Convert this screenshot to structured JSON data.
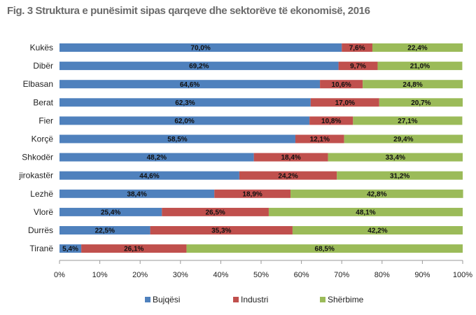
{
  "chart_data": {
    "type": "bar",
    "orientation": "horizontal",
    "stacked": true,
    "title": "Fig. 3 Struktura e punësimit sipas qarqeve dhe sektorëve të ekonomisë, 2016",
    "categories": [
      "Kukës",
      "Dibër",
      "Elbasan",
      "Berat",
      "Fier",
      "Korçë",
      "Shkodër",
      "jirokastër",
      "Lezhë",
      "Vlorë",
      "Durrës",
      "Tiranë"
    ],
    "series": [
      {
        "name": "Bujqësi",
        "color": "#4f81bd",
        "values": [
          70.0,
          69.2,
          64.6,
          62.3,
          62.0,
          58.5,
          48.2,
          44.6,
          38.4,
          25.4,
          22.5,
          5.4
        ],
        "labels": [
          "70,0%",
          "69,2%",
          "64,6%",
          "62,3%",
          "62,0%",
          "58,5%",
          "48,2%",
          "44,6%",
          "38,4%",
          "25,4%",
          "22,5%",
          "5,4%"
        ]
      },
      {
        "name": "Industri",
        "color": "#c0504d",
        "values": [
          7.6,
          9.7,
          10.6,
          17.0,
          10.8,
          12.1,
          18.4,
          24.2,
          18.9,
          26.5,
          35.3,
          26.1
        ],
        "labels": [
          "7,6%",
          "9,7%",
          "10,6%",
          "17,0%",
          "10,8%",
          "12,1%",
          "18,4%",
          "24,2%",
          "18,9%",
          "26,5%",
          "35,3%",
          "26,1%"
        ]
      },
      {
        "name": "Shërbime",
        "color": "#9bbb59",
        "values": [
          22.4,
          21.0,
          24.8,
          20.7,
          27.1,
          29.4,
          33.4,
          31.2,
          42.8,
          48.1,
          42.2,
          68.5
        ],
        "labels": [
          "22,4%",
          "21,0%",
          "24,8%",
          "20,7%",
          "27,1%",
          "29,4%",
          "33,4%",
          "31,2%",
          "42,8%",
          "48,1%",
          "42,2%",
          "68,5%"
        ]
      }
    ],
    "xlim": [
      0,
      100
    ],
    "xticks": [
      "0%",
      "10%",
      "20%",
      "30%",
      "40%",
      "50%",
      "60%",
      "70%",
      "80%",
      "90%",
      "100%"
    ],
    "grid": false,
    "legend_position": "bottom"
  }
}
